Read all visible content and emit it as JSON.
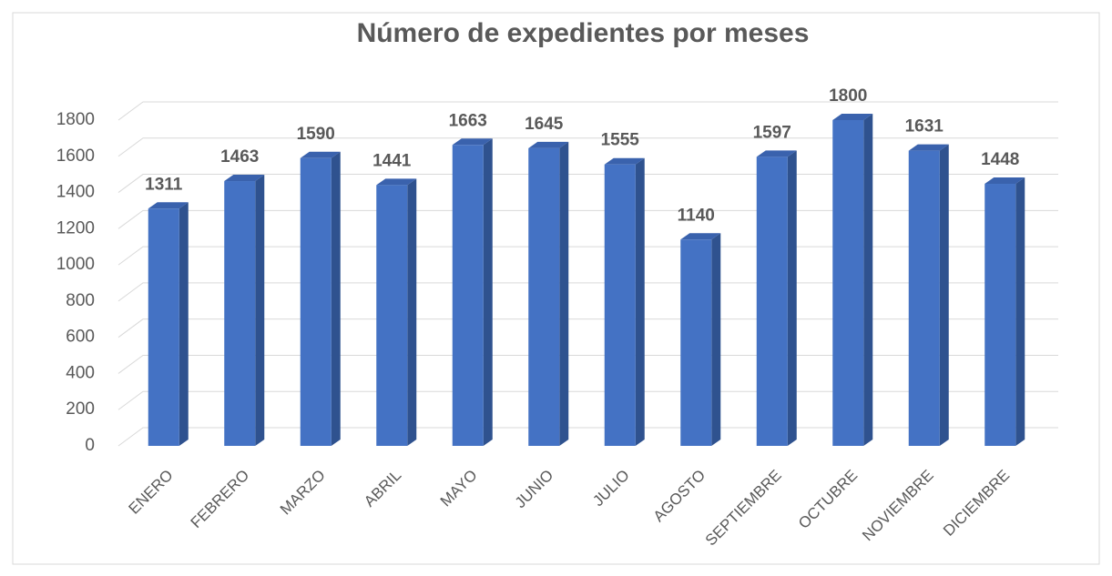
{
  "chart_data": {
    "type": "bar",
    "title": "Número de expedientes por meses",
    "categories": [
      "ENERO",
      "FEBRERO",
      "MARZO",
      "ABRIL",
      "MAYO",
      "JUNIO",
      "JULIO",
      "AGOSTO",
      "SEPTIEMBRE",
      "OCTUBRE",
      "NOVIEMBRE",
      "DICIEMBRE"
    ],
    "values": [
      1311,
      1463,
      1590,
      1441,
      1663,
      1645,
      1555,
      1140,
      1597,
      1800,
      1631,
      1448
    ],
    "color": "#4472c4",
    "ylim": [
      0,
      1800
    ],
    "yticks": [
      0,
      200,
      400,
      600,
      800,
      1000,
      1200,
      1400,
      1600,
      1800
    ],
    "grid": true
  }
}
